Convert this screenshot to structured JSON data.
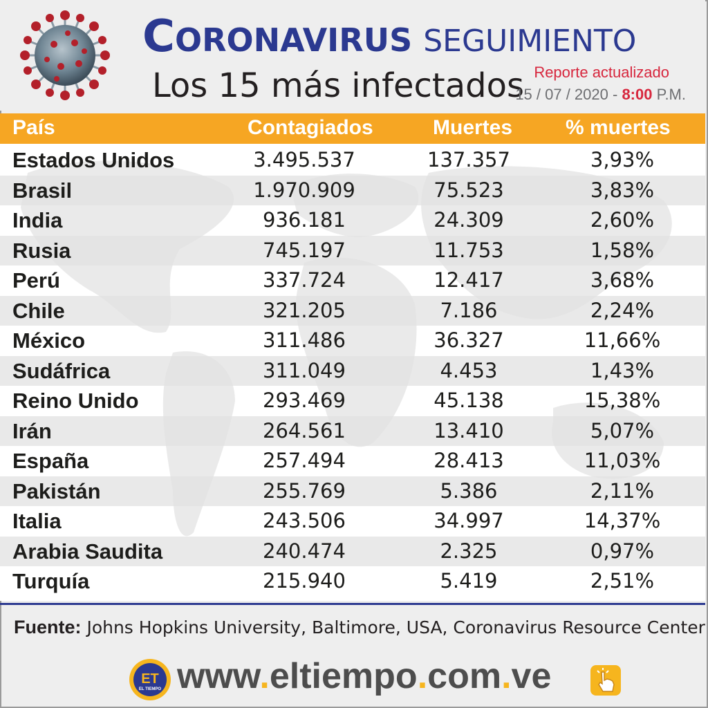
{
  "header": {
    "title_first_letter": "C",
    "title_rest": "ORONAVIRUS",
    "title_light": "SEGUIMIENTO",
    "subtitle": "Los 15 más infectados",
    "report_label": "Reporte actualizado",
    "date": "15 / 07 / 2020 -",
    "time": "8:00",
    "ampm": "P.M."
  },
  "table": {
    "columns": [
      "País",
      "Contagiados",
      "Muertes",
      "% muertes"
    ],
    "rows": [
      [
        "Estados Unidos",
        "3.495.537",
        "137.357",
        "3,93%"
      ],
      [
        "Brasil",
        "1.970.909",
        "75.523",
        "3,83%"
      ],
      [
        "India",
        "936.181",
        "24.309",
        "2,60%"
      ],
      [
        "Rusia",
        "745.197",
        "11.753",
        "1,58%"
      ],
      [
        "Perú",
        "337.724",
        "12.417",
        "3,68%"
      ],
      [
        "Chile",
        "321.205",
        "7.186",
        "2,24%"
      ],
      [
        "México",
        "311.486",
        "36.327",
        "11,66%"
      ],
      [
        "Sudáfrica",
        "311.049",
        "4.453",
        "1,43%"
      ],
      [
        "Reino Unido",
        "293.469",
        "45.138",
        "15,38%"
      ],
      [
        "Irán",
        "264.561",
        "13.410",
        "5,07%"
      ],
      [
        "España",
        "257.494",
        "28.413",
        "11,03%"
      ],
      [
        "Pakistán",
        "255.769",
        "5.386",
        "2,11%"
      ],
      [
        "Italia",
        "243.506",
        "34.997",
        "14,37%"
      ],
      [
        "Arabia Saudita",
        "240.474",
        "2.325",
        "0,97%"
      ],
      [
        "Turquía",
        "215.940",
        "5.419",
        "2,51%"
      ]
    ]
  },
  "source": {
    "label": "Fuente:",
    "text": "Johns Hopkins University, Baltimore, USA, Coronavirus Resource Center"
  },
  "footer": {
    "logo_text": "ET",
    "logo_subtext": "EL TIEMPO",
    "url_parts": [
      "www",
      ".",
      "eltiempo",
      ".",
      "com",
      ".",
      "ve"
    ]
  },
  "colors": {
    "header_bar": "#f6a623",
    "title_blue": "#2b3990",
    "accent_red": "#d7263d",
    "url_dot": "#f6b51e"
  }
}
